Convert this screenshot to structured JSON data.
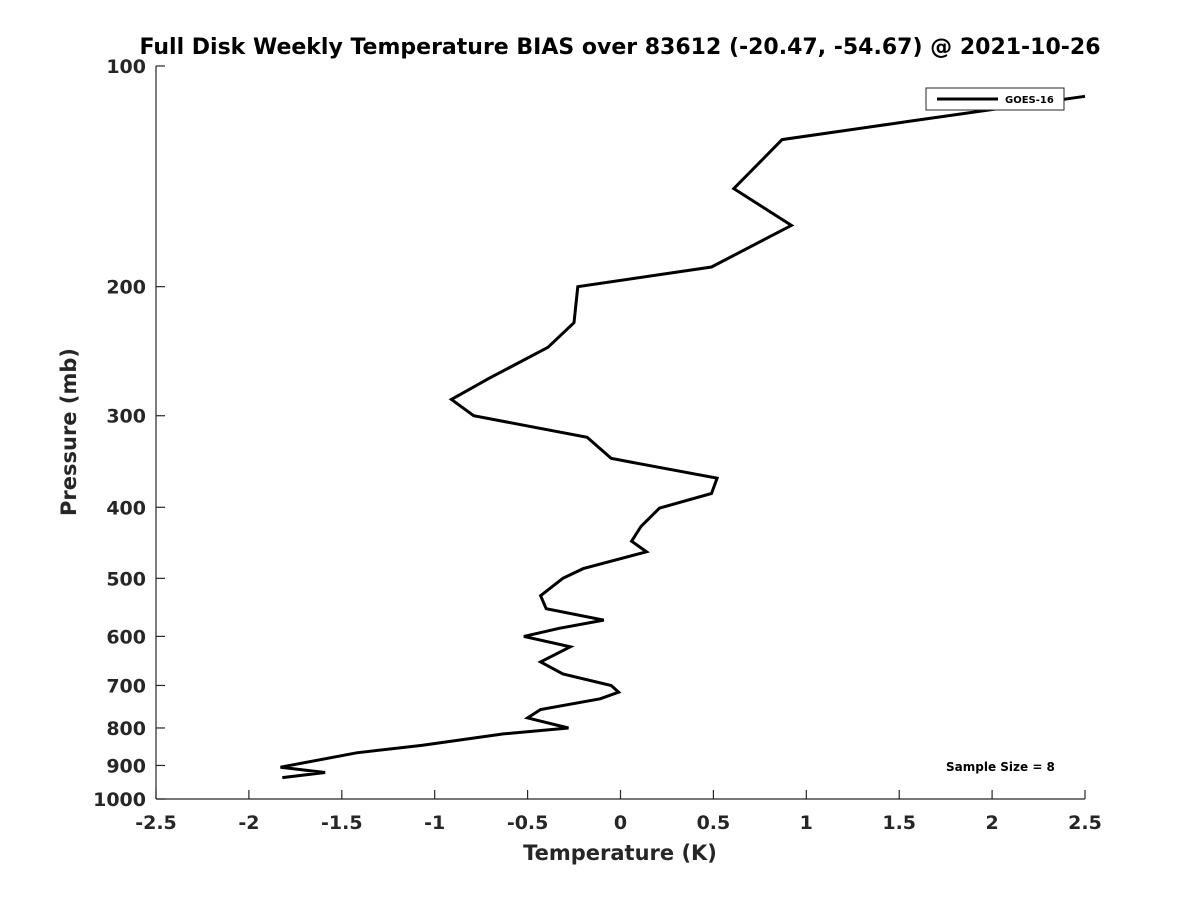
{
  "chart_data": {
    "type": "line",
    "title": "Full Disk Weekly Temperature BIAS over 83612 (-20.47, -54.67) @ 2021-10-26",
    "xlabel": "Temperature (K)",
    "ylabel": "Pressure (mb)",
    "xlim": [
      -2.5,
      2.5
    ],
    "ylim": [
      1000,
      100
    ],
    "y_scale": "log",
    "y_reversed": true,
    "grid": false,
    "legend_position": "top-right",
    "x_ticks": [
      -2.5,
      -2,
      -1.5,
      -1,
      -0.5,
      0,
      0.5,
      1,
      1.5,
      2,
      2.5
    ],
    "x_tick_labels": [
      "-2.5",
      "-2",
      "-1.5",
      "-1",
      "-0.5",
      "0",
      "0.5",
      "1",
      "1.5",
      "2",
      "2.5"
    ],
    "y_ticks": [
      100,
      200,
      300,
      400,
      500,
      600,
      700,
      800,
      900,
      1000
    ],
    "y_tick_labels": [
      "100",
      "200",
      "300",
      "400",
      "500",
      "600",
      "700",
      "800",
      "900",
      "1000"
    ],
    "annotation": "Sample Size = 8",
    "series": [
      {
        "name": "GOES-16",
        "color": "#000000",
        "points": [
          {
            "x": 2.5,
            "p": 110
          },
          {
            "x": 1.55,
            "p": 119
          },
          {
            "x": 0.87,
            "p": 126
          },
          {
            "x": 0.61,
            "p": 147
          },
          {
            "x": 0.92,
            "p": 165
          },
          {
            "x": 0.49,
            "p": 188
          },
          {
            "x": -0.23,
            "p": 200
          },
          {
            "x": -0.25,
            "p": 224
          },
          {
            "x": -0.39,
            "p": 242
          },
          {
            "x": -0.71,
            "p": 267
          },
          {
            "x": -0.91,
            "p": 285
          },
          {
            "x": -0.79,
            "p": 300
          },
          {
            "x": -0.18,
            "p": 321
          },
          {
            "x": -0.05,
            "p": 343
          },
          {
            "x": 0.52,
            "p": 365
          },
          {
            "x": 0.49,
            "p": 383
          },
          {
            "x": 0.21,
            "p": 401
          },
          {
            "x": 0.11,
            "p": 425
          },
          {
            "x": 0.06,
            "p": 445
          },
          {
            "x": 0.14,
            "p": 460
          },
          {
            "x": -0.2,
            "p": 485
          },
          {
            "x": -0.31,
            "p": 500
          },
          {
            "x": -0.43,
            "p": 528
          },
          {
            "x": -0.4,
            "p": 550
          },
          {
            "x": -0.09,
            "p": 570
          },
          {
            "x": -0.33,
            "p": 585
          },
          {
            "x": -0.52,
            "p": 600
          },
          {
            "x": -0.27,
            "p": 620
          },
          {
            "x": -0.43,
            "p": 650
          },
          {
            "x": -0.31,
            "p": 675
          },
          {
            "x": -0.05,
            "p": 700
          },
          {
            "x": -0.01,
            "p": 715
          },
          {
            "x": -0.11,
            "p": 730
          },
          {
            "x": -0.43,
            "p": 755
          },
          {
            "x": -0.5,
            "p": 775
          },
          {
            "x": -0.28,
            "p": 800
          },
          {
            "x": -0.63,
            "p": 815
          },
          {
            "x": -1.07,
            "p": 845
          },
          {
            "x": -1.42,
            "p": 865
          },
          {
            "x": -1.83,
            "p": 905
          },
          {
            "x": -1.59,
            "p": 920
          },
          {
            "x": -1.82,
            "p": 935
          }
        ]
      }
    ]
  }
}
